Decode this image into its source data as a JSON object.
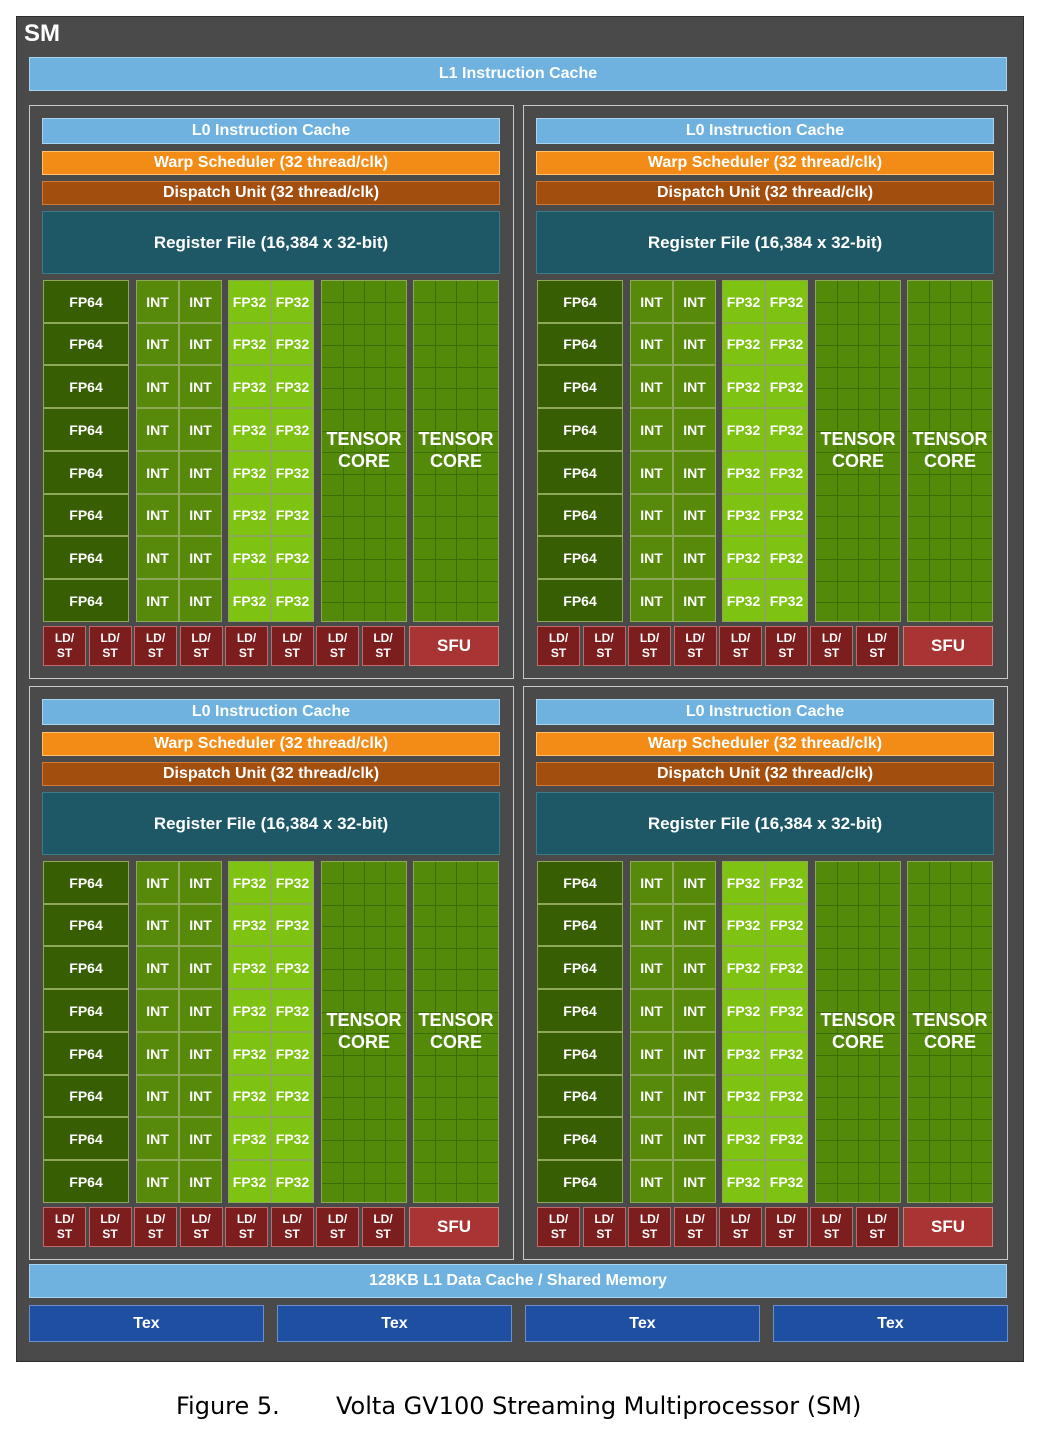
{
  "sm_label": "SM",
  "l1_instruction_cache": "L1 Instruction Cache",
  "partition": {
    "l0_cache": "L0 Instruction Cache",
    "warp_scheduler": "Warp Scheduler (32 thread/clk)",
    "dispatch_unit": "Dispatch Unit (32 thread/clk)",
    "register_file": "Register File (16,384 x 32-bit)",
    "fp64": "FP64",
    "int": "INT",
    "fp32": "FP32",
    "tensor_core": [
      "TENSOR",
      "CORE"
    ],
    "ldst": [
      "LD/",
      "ST"
    ],
    "sfu": "SFU",
    "rows": 8,
    "ldst_count": 8,
    "tensor_cores": 2
  },
  "l1_data_cache": "128KB L1 Data Cache / Shared Memory",
  "tex_units": [
    "Tex",
    "Tex",
    "Tex",
    "Tex"
  ],
  "caption": {
    "number": "Figure 5.",
    "text": "Volta GV100 Streaming Multiprocessor (SM)"
  },
  "colors": {
    "background": "#4a4a4a",
    "cache": "#6fb2df",
    "warp_scheduler": "#f28c16",
    "dispatch_unit": "#a24e0e",
    "register_file": "#1e5866",
    "fp64": "#385e04",
    "int": "#578a0a",
    "fp32": "#7ec212",
    "tensor": "#548a0a",
    "ldst": "#7c1e1e",
    "sfu": "#a83434",
    "tex": "#1f4fa1"
  }
}
